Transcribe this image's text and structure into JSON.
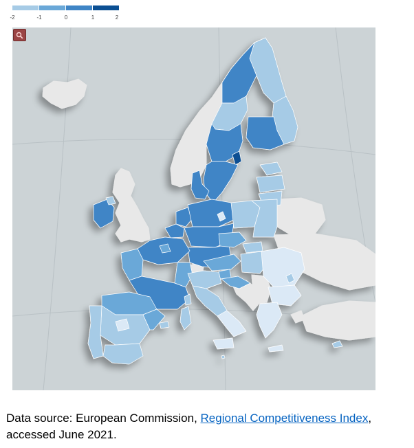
{
  "legend": {
    "ticks": [
      "-2",
      "-1",
      "0",
      "1",
      "2"
    ],
    "colors": [
      "#dbe9f6",
      "#a6cbe6",
      "#6aa8d8",
      "#3f85c6",
      "#0b4f93"
    ]
  },
  "map": {
    "zoom_icon": "magnifier-icon",
    "colors": {
      "ocean": "#ccd3d6",
      "non_eu": "#e8e8e8",
      "graticule": "#b9c1c5",
      "border": "#ffffff",
      "shadow": "#aab3b7"
    }
  },
  "caption": {
    "prefix": "Data source: European Commission, ",
    "link": "Regional Competitiveness Index",
    "suffix": ",",
    "line2": "accessed June 2021."
  }
}
